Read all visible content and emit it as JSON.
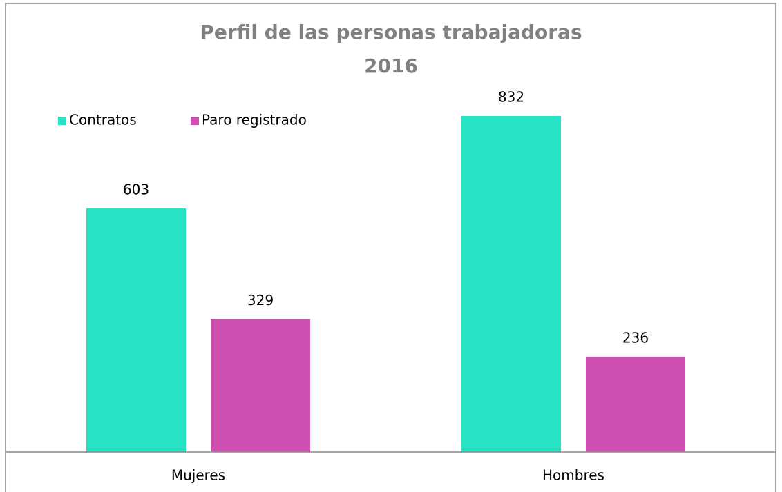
{
  "chart_data": {
    "type": "bar",
    "title": "Perfil de las personas trabajadoras",
    "subtitle": "2016",
    "categories": [
      "Mujeres",
      "Hombres"
    ],
    "series": [
      {
        "name": "Contratos",
        "color": "#26e3c6",
        "values": [
          603,
          832
        ]
      },
      {
        "name": "Paro registrado",
        "color": "#cf4fb0",
        "values": [
          329,
          236
        ]
      }
    ]
  }
}
